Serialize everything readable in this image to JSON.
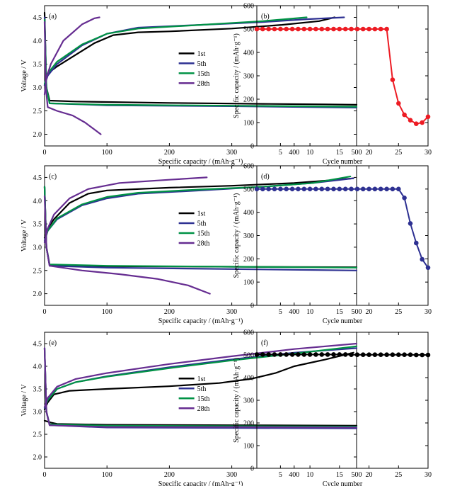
{
  "chart_data": [
    {
      "panel": "(a)",
      "type": "line",
      "xlabel": "Specific capacity / (mAh·g⁻¹)",
      "ylabel": "Voltage / V",
      "xlim": [
        0,
        500
      ],
      "ylim": [
        1.75,
        4.75
      ],
      "xticks": [
        "0",
        "100",
        "200",
        "300",
        "400",
        "500"
      ],
      "yticks": [
        "2.0",
        "2.5",
        "3.0",
        "3.5",
        "4.0",
        "4.5"
      ],
      "legend_position": "right",
      "series": [
        {
          "name": "1st",
          "color": "#000000",
          "charge": [
            [
              0,
              3.05
            ],
            [
              5,
              3.3
            ],
            [
              20,
              3.45
            ],
            [
              50,
              3.7
            ],
            [
              80,
              3.95
            ],
            [
              110,
              4.12
            ],
            [
              150,
              4.18
            ],
            [
              200,
              4.2
            ],
            [
              300,
              4.26
            ],
            [
              380,
              4.34
            ],
            [
              440,
              4.42
            ],
            [
              465,
              4.5
            ]
          ],
          "discharge": [
            [
              0,
              4.6
            ],
            [
              3,
              3.0
            ],
            [
              8,
              2.72
            ],
            [
              50,
              2.7
            ],
            [
              200,
              2.67
            ],
            [
              350,
              2.65
            ],
            [
              450,
              2.64
            ],
            [
              500,
              2.63
            ]
          ]
        },
        {
          "name": "5th",
          "color": "#2e3192",
          "charge": [
            [
              0,
              3.05
            ],
            [
              5,
              3.25
            ],
            [
              20,
              3.5
            ],
            [
              60,
              3.9
            ],
            [
              100,
              4.15
            ],
            [
              150,
              4.28
            ],
            [
              250,
              4.34
            ],
            [
              350,
              4.4
            ],
            [
              420,
              4.46
            ],
            [
              480,
              4.5
            ]
          ],
          "discharge": [
            [
              0,
              4.5
            ],
            [
              3,
              3.0
            ],
            [
              8,
              2.66
            ],
            [
              100,
              2.62
            ],
            [
              300,
              2.6
            ],
            [
              500,
              2.57
            ]
          ]
        },
        {
          "name": "15th",
          "color": "#009245",
          "charge": [
            [
              0,
              3.08
            ],
            [
              5,
              3.3
            ],
            [
              20,
              3.55
            ],
            [
              60,
              3.92
            ],
            [
              100,
              4.15
            ],
            [
              150,
              4.26
            ],
            [
              250,
              4.34
            ],
            [
              350,
              4.42
            ],
            [
              420,
              4.5
            ]
          ],
          "discharge": [
            [
              0,
              4.45
            ],
            [
              3,
              3.0
            ],
            [
              8,
              2.66
            ],
            [
              100,
              2.63
            ],
            [
              300,
              2.61
            ],
            [
              500,
              2.59
            ]
          ]
        },
        {
          "name": "28th",
          "color": "#662d91",
          "charge": [
            [
              0,
              2.85
            ],
            [
              3,
              3.2
            ],
            [
              10,
              3.5
            ],
            [
              30,
              4.0
            ],
            [
              60,
              4.35
            ],
            [
              80,
              4.48
            ],
            [
              88,
              4.5
            ]
          ],
          "discharge": [
            [
              0,
              4.4
            ],
            [
              2,
              3.0
            ],
            [
              5,
              2.58
            ],
            [
              20,
              2.5
            ],
            [
              45,
              2.4
            ],
            [
              65,
              2.25
            ],
            [
              80,
              2.1
            ],
            [
              90,
              2.0
            ]
          ]
        }
      ]
    },
    {
      "panel": "(b)",
      "type": "line",
      "xlabel": "Cycle number",
      "ylabel": "Specific capacity / (mAh·g⁻¹)",
      "xlim": [
        1,
        30
      ],
      "ylim": [
        0,
        600
      ],
      "xticks": [
        "5",
        "10",
        "15",
        "20",
        "25",
        "30"
      ],
      "yticks": [
        "0",
        "100",
        "200",
        "300",
        "400",
        "500",
        "600"
      ],
      "color": "#ed1c24",
      "x": [
        1,
        2,
        3,
        4,
        5,
        6,
        7,
        8,
        9,
        10,
        11,
        12,
        13,
        14,
        15,
        16,
        17,
        18,
        19,
        20,
        21,
        22,
        23,
        24,
        25,
        26,
        27,
        28,
        29,
        30
      ],
      "values": [
        500,
        500,
        500,
        500,
        500,
        500,
        500,
        500,
        500,
        500,
        500,
        500,
        500,
        500,
        500,
        500,
        500,
        500,
        500,
        500,
        500,
        500,
        500,
        283,
        182,
        133,
        110,
        95,
        100,
        125
      ]
    },
    {
      "panel": "(c)",
      "type": "line",
      "xlabel": "Specific capacity / (mAh·g⁻¹)",
      "ylabel": "Voltage / V",
      "xlim": [
        0,
        500
      ],
      "ylim": [
        1.75,
        4.75
      ],
      "xticks": [
        "0",
        "100",
        "200",
        "300",
        "400",
        "500"
      ],
      "yticks": [
        "2.0",
        "2.5",
        "3.0",
        "3.5",
        "4.0",
        "4.5"
      ],
      "legend_position": "right",
      "series": [
        {
          "name": "1st",
          "color": "#000000",
          "charge": [
            [
              0,
              3.2
            ],
            [
              5,
              3.4
            ],
            [
              15,
              3.6
            ],
            [
              40,
              3.95
            ],
            [
              70,
              4.15
            ],
            [
              100,
              4.22
            ],
            [
              200,
              4.28
            ],
            [
              300,
              4.32
            ],
            [
              400,
              4.38
            ],
            [
              460,
              4.44
            ],
            [
              495,
              4.48
            ]
          ],
          "discharge": [
            [
              0,
              4.3
            ],
            [
              3,
              3.0
            ],
            [
              8,
              2.62
            ],
            [
              100,
              2.59
            ],
            [
              300,
              2.58
            ],
            [
              500,
              2.57
            ]
          ]
        },
        {
          "name": "5th",
          "color": "#2e3192",
          "charge": [
            [
              0,
              3.15
            ],
            [
              5,
              3.35
            ],
            [
              20,
              3.6
            ],
            [
              60,
              3.9
            ],
            [
              100,
              4.05
            ],
            [
              150,
              4.15
            ],
            [
              250,
              4.22
            ],
            [
              350,
              4.3
            ],
            [
              430,
              4.38
            ],
            [
              495,
              4.48
            ]
          ],
          "discharge": [
            [
              0,
              4.3
            ],
            [
              3,
              3.0
            ],
            [
              8,
              2.6
            ],
            [
              100,
              2.56
            ],
            [
              300,
              2.53
            ],
            [
              500,
              2.5
            ]
          ]
        },
        {
          "name": "15th",
          "color": "#009245",
          "charge": [
            [
              0,
              3.12
            ],
            [
              5,
              3.35
            ],
            [
              20,
              3.62
            ],
            [
              60,
              3.92
            ],
            [
              100,
              4.08
            ],
            [
              150,
              4.17
            ],
            [
              250,
              4.24
            ],
            [
              350,
              4.3
            ],
            [
              430,
              4.38
            ],
            [
              490,
              4.52
            ]
          ],
          "discharge": [
            [
              0,
              4.3
            ],
            [
              3,
              3.0
            ],
            [
              8,
              2.63
            ],
            [
              100,
              2.6
            ],
            [
              300,
              2.58
            ],
            [
              500,
              2.56
            ]
          ]
        },
        {
          "name": "28th",
          "color": "#662d91",
          "charge": [
            [
              0,
              3.1
            ],
            [
              5,
              3.4
            ],
            [
              15,
              3.7
            ],
            [
              40,
              4.05
            ],
            [
              70,
              4.25
            ],
            [
              120,
              4.38
            ],
            [
              200,
              4.45
            ],
            [
              260,
              4.5
            ]
          ],
          "discharge": [
            [
              0,
              4.1
            ],
            [
              3,
              3.0
            ],
            [
              8,
              2.6
            ],
            [
              60,
              2.5
            ],
            [
              120,
              2.42
            ],
            [
              180,
              2.32
            ],
            [
              230,
              2.18
            ],
            [
              265,
              2.0
            ]
          ]
        }
      ]
    },
    {
      "panel": "(d)",
      "type": "line",
      "xlabel": "Cycle number",
      "ylabel": "Specific capacity / (mAh·g⁻¹)",
      "xlim": [
        1,
        30
      ],
      "ylim": [
        0,
        600
      ],
      "xticks": [
        "5",
        "10",
        "15",
        "20",
        "25",
        "30"
      ],
      "yticks": [
        "0",
        "100",
        "200",
        "300",
        "400",
        "500",
        "600"
      ],
      "color": "#2e3192",
      "x": [
        1,
        2,
        3,
        4,
        5,
        6,
        7,
        8,
        9,
        10,
        11,
        12,
        13,
        14,
        15,
        16,
        17,
        18,
        19,
        20,
        21,
        22,
        23,
        24,
        25,
        26,
        27,
        28,
        29,
        30
      ],
      "values": [
        500,
        500,
        500,
        500,
        500,
        500,
        500,
        500,
        500,
        500,
        500,
        500,
        500,
        500,
        500,
        500,
        500,
        500,
        500,
        500,
        500,
        500,
        500,
        500,
        500,
        462,
        352,
        268,
        198,
        162
      ]
    },
    {
      "panel": "(e)",
      "type": "line",
      "xlabel": "Specific capacity / (mAh·g⁻¹)",
      "ylabel": "Voltage / V",
      "xlim": [
        0,
        500
      ],
      "ylim": [
        1.75,
        4.75
      ],
      "xticks": [
        "0",
        "100",
        "200",
        "300",
        "400",
        "500"
      ],
      "yticks": [
        "2.0",
        "2.5",
        "3.0",
        "3.5",
        "4.0",
        "4.5"
      ],
      "legend_position": "right",
      "series": [
        {
          "name": "1st",
          "color": "#000000",
          "charge": [
            [
              0,
              3.05
            ],
            [
              5,
              3.2
            ],
            [
              15,
              3.38
            ],
            [
              40,
              3.46
            ],
            [
              100,
              3.5
            ],
            [
              200,
              3.56
            ],
            [
              280,
              3.63
            ],
            [
              330,
              3.72
            ],
            [
              370,
              3.85
            ],
            [
              400,
              4.0
            ],
            [
              450,
              4.15
            ],
            [
              495,
              4.3
            ]
          ],
          "discharge": [
            [
              0,
              2.8
            ],
            [
              10,
              2.76
            ],
            [
              20,
              2.73
            ],
            [
              100,
              2.71
            ],
            [
              300,
              2.7
            ],
            [
              500,
              2.69
            ]
          ]
        },
        {
          "name": "5th",
          "color": "#2e3192",
          "charge": [
            [
              0,
              3.08
            ],
            [
              5,
              3.25
            ],
            [
              20,
              3.5
            ],
            [
              50,
              3.65
            ],
            [
              100,
              3.78
            ],
            [
              200,
              3.98
            ],
            [
              300,
              4.15
            ],
            [
              400,
              4.3
            ],
            [
              500,
              4.4
            ]
          ],
          "discharge": [
            [
              0,
              4.4
            ],
            [
              3,
              3.0
            ],
            [
              8,
              2.7
            ],
            [
              100,
              2.65
            ],
            [
              300,
              2.64
            ],
            [
              500,
              2.63
            ]
          ]
        },
        {
          "name": "15th",
          "color": "#009245",
          "charge": [
            [
              0,
              3.1
            ],
            [
              5,
              3.25
            ],
            [
              20,
              3.5
            ],
            [
              50,
              3.65
            ],
            [
              100,
              3.77
            ],
            [
              200,
              3.96
            ],
            [
              300,
              4.13
            ],
            [
              400,
              4.28
            ],
            [
              500,
              4.44
            ]
          ],
          "discharge": [
            [
              0,
              4.4
            ],
            [
              3,
              3.0
            ],
            [
              8,
              2.72
            ],
            [
              100,
              2.69
            ],
            [
              300,
              2.68
            ],
            [
              500,
              2.67
            ]
          ]
        },
        {
          "name": "28th",
          "color": "#662d91",
          "charge": [
            [
              0,
              3.1
            ],
            [
              5,
              3.3
            ],
            [
              20,
              3.55
            ],
            [
              50,
              3.72
            ],
            [
              100,
              3.85
            ],
            [
              200,
              4.05
            ],
            [
              300,
              4.22
            ],
            [
              400,
              4.38
            ],
            [
              500,
              4.5
            ]
          ],
          "discharge": [
            [
              0,
              4.4
            ],
            [
              3,
              3.0
            ],
            [
              8,
              2.7
            ],
            [
              100,
              2.66
            ],
            [
              300,
              2.66
            ],
            [
              500,
              2.65
            ]
          ]
        }
      ]
    },
    {
      "panel": "(f)",
      "type": "line",
      "xlabel": "Cycle number",
      "ylabel": "Specific capacity / (mAh·g⁻¹)",
      "xlim": [
        1,
        30
      ],
      "ylim": [
        0,
        600
      ],
      "xticks": [
        "5",
        "10",
        "15",
        "20",
        "25",
        "30"
      ],
      "yticks": [
        "0",
        "100",
        "200",
        "300",
        "400",
        "500",
        "600"
      ],
      "color": "#000000",
      "x": [
        1,
        2,
        3,
        4,
        5,
        6,
        7,
        8,
        9,
        10,
        11,
        12,
        13,
        14,
        15,
        16,
        17,
        18,
        19,
        20,
        21,
        22,
        23,
        24,
        25,
        26,
        27,
        28,
        29,
        30
      ],
      "values": [
        502,
        502,
        502,
        502,
        502,
        502,
        502,
        502,
        502,
        502,
        502,
        502,
        502,
        502,
        502,
        502,
        501,
        501,
        501,
        501,
        501,
        501,
        501,
        501,
        501,
        501,
        501,
        500,
        500,
        500
      ]
    }
  ]
}
